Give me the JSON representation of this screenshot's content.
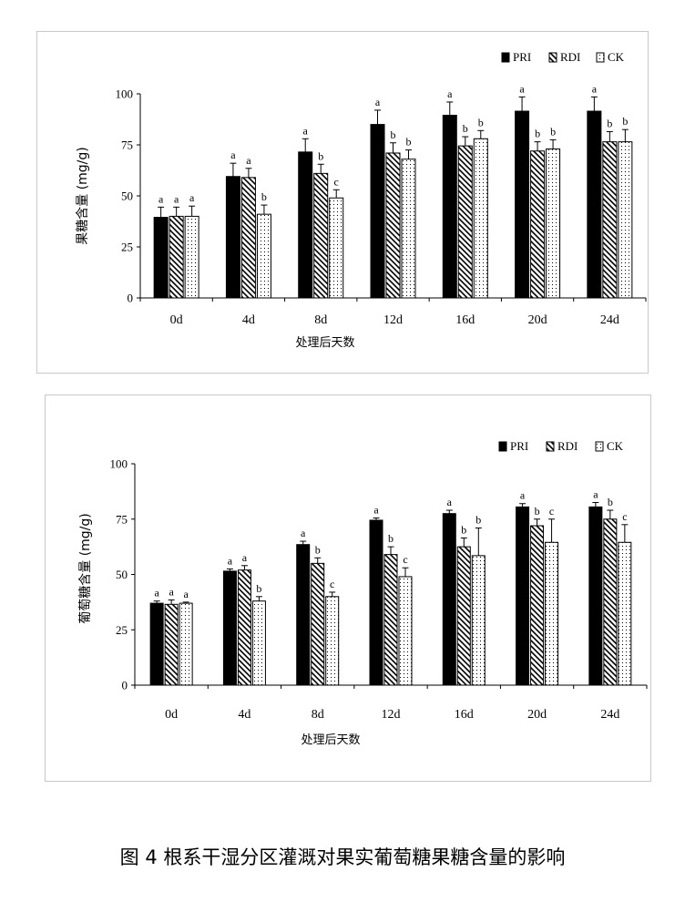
{
  "figure_caption": "图 4 根系干湿分区灌溉对果实葡萄糖果糖含量的影响",
  "legend_labels": [
    "PRI",
    "RDI",
    "CK"
  ],
  "chart_data": [
    {
      "type": "bar",
      "title": "",
      "xlabel": "处理后天数",
      "ylabel": "果糖含量 (mg/g)",
      "ylim": [
        0,
        100
      ],
      "yticks": [
        "0",
        "25",
        "50",
        "75",
        "100"
      ],
      "categories": [
        "0d",
        "4d",
        "8d",
        "12d",
        "16d",
        "20d",
        "24d"
      ],
      "series": [
        {
          "name": "PRI",
          "pattern": "solid",
          "values": [
            39.5,
            59.5,
            71.5,
            85,
            89.5,
            91.5,
            91.5
          ],
          "errors": [
            5,
            6.5,
            6.5,
            7,
            6.5,
            7,
            7
          ],
          "letters": [
            "a",
            "a",
            "a",
            "a",
            "a",
            "a",
            "a"
          ]
        },
        {
          "name": "RDI",
          "pattern": "hatch",
          "values": [
            40,
            59,
            61,
            71,
            74.5,
            72,
            76.5
          ],
          "errors": [
            4.5,
            4.5,
            4.5,
            5,
            4.5,
            4.5,
            5
          ],
          "letters": [
            "a",
            "a",
            "b",
            "b",
            "b",
            "b",
            "b"
          ]
        },
        {
          "name": "CK",
          "pattern": "dots",
          "values": [
            40,
            41,
            49,
            68,
            78,
            73,
            76.5
          ],
          "errors": [
            5,
            4.5,
            4,
            4.5,
            4,
            4.5,
            6
          ],
          "letters": [
            "a",
            "b",
            "c",
            "b",
            "b",
            "b",
            "b"
          ]
        }
      ],
      "legend": "top-right",
      "grid": false
    },
    {
      "type": "bar",
      "title": "",
      "xlabel": "处理后天数",
      "ylabel": "葡萄糖含量 (mg/g)",
      "ylim": [
        0,
        100
      ],
      "yticks": [
        "0",
        "25",
        "50",
        "75",
        "100"
      ],
      "categories": [
        "0d",
        "4d",
        "8d",
        "12d",
        "16d",
        "20d",
        "24d"
      ],
      "series": [
        {
          "name": "PRI",
          "pattern": "solid",
          "values": [
            37,
            51.5,
            63.5,
            74.5,
            77.5,
            80.5,
            80.5
          ],
          "errors": [
            1,
            1,
            1.5,
            1,
            1.5,
            1.5,
            2
          ],
          "letters": [
            "a",
            "a",
            "a",
            "a",
            "a",
            "a",
            "a"
          ]
        },
        {
          "name": "RDI",
          "pattern": "hatch",
          "values": [
            36.5,
            52,
            55,
            59,
            62.5,
            72,
            75
          ],
          "errors": [
            2,
            2,
            2.5,
            3.5,
            4,
            3,
            4
          ],
          "letters": [
            "a",
            "a",
            "b",
            "b",
            "b",
            "b",
            "b"
          ]
        },
        {
          "name": "CK",
          "pattern": "dots",
          "values": [
            37,
            38,
            40,
            49,
            58.5,
            64.5,
            64.5
          ],
          "errors": [
            0.5,
            2,
            2,
            4,
            12.5,
            10.5,
            8
          ],
          "letters": [
            "a",
            "b",
            "c",
            "c",
            "b",
            "c",
            "c"
          ]
        }
      ],
      "legend": "top-right",
      "grid": false
    }
  ]
}
